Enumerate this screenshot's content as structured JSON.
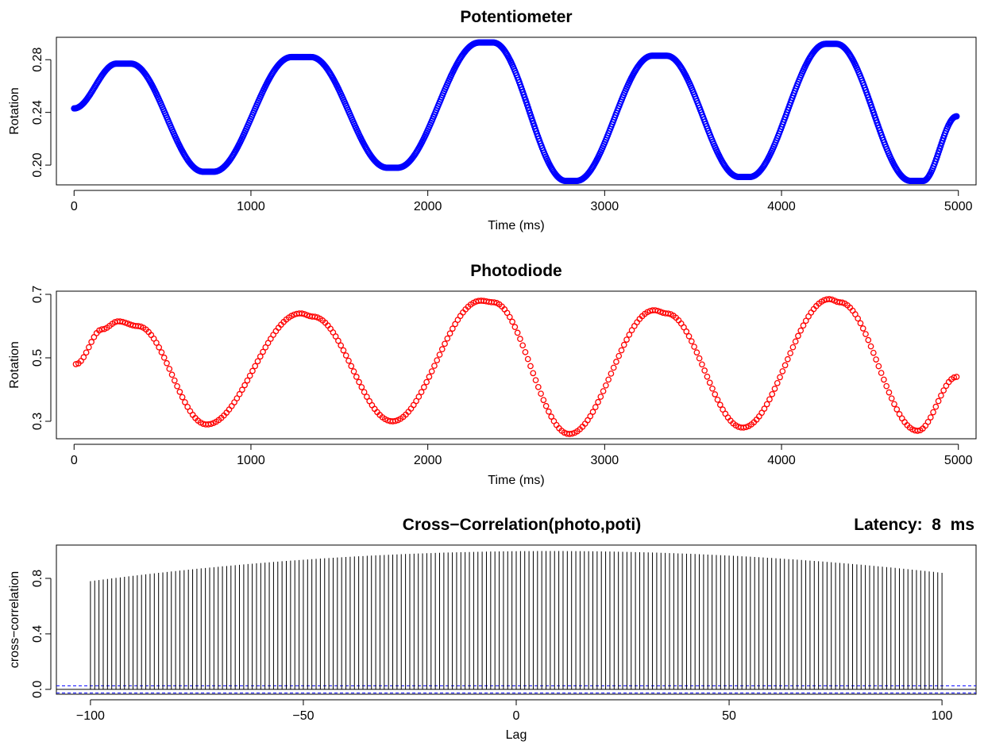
{
  "chart_data": [
    {
      "type": "scatter",
      "title": "Potentiometer",
      "xlabel": "Time (ms)",
      "ylabel": "Rotation",
      "xlim": [
        -100,
        5100
      ],
      "ylim": [
        0.185,
        0.297
      ],
      "xticks": [
        0,
        1000,
        2000,
        3000,
        4000,
        5000
      ],
      "yticks": [
        0.2,
        0.24,
        0.28
      ],
      "ytick_labels": [
        "0.20",
        "0.24",
        "0.28"
      ],
      "color": "#0000ff",
      "series": [
        {
          "keypoints": [
            [
              0,
              0.243
            ],
            [
              240,
              0.277
            ],
            [
              320,
              0.277
            ],
            [
              730,
              0.195
            ],
            [
              790,
              0.195
            ],
            [
              1230,
              0.282
            ],
            [
              1340,
              0.282
            ],
            [
              1770,
              0.198
            ],
            [
              1830,
              0.198
            ],
            [
              2290,
              0.293
            ],
            [
              2370,
              0.293
            ],
            [
              2780,
              0.188
            ],
            [
              2840,
              0.188
            ],
            [
              3270,
              0.283
            ],
            [
              3350,
              0.283
            ],
            [
              3760,
              0.191
            ],
            [
              3820,
              0.191
            ],
            [
              4250,
              0.292
            ],
            [
              4310,
              0.292
            ],
            [
              4730,
              0.188
            ],
            [
              4800,
              0.188
            ],
            [
              4990,
              0.237
            ]
          ],
          "count": 1000
        }
      ]
    },
    {
      "type": "scatter",
      "title": "Photodiode",
      "xlabel": "Time (ms)",
      "ylabel": "Rotation",
      "xlim": [
        -100,
        5100
      ],
      "ylim": [
        0.245,
        0.71
      ],
      "xticks": [
        0,
        1000,
        2000,
        3000,
        4000,
        5000
      ],
      "yticks": [
        0.3,
        0.5,
        0.7
      ],
      "ytick_labels": [
        "0.3",
        "0.5",
        "0.7"
      ],
      "color": "#ff0000",
      "series": [
        {
          "keypoints": [
            [
              10,
              0.48
            ],
            [
              160,
              0.59
            ],
            [
              250,
              0.615
            ],
            [
              360,
              0.6
            ],
            [
              750,
              0.29
            ],
            [
              1280,
              0.64
            ],
            [
              1350,
              0.63
            ],
            [
              1800,
              0.3
            ],
            [
              2300,
              0.68
            ],
            [
              2370,
              0.675
            ],
            [
              2800,
              0.26
            ],
            [
              3280,
              0.65
            ],
            [
              3350,
              0.64
            ],
            [
              3780,
              0.28
            ],
            [
              4270,
              0.685
            ],
            [
              4330,
              0.675
            ],
            [
              4770,
              0.27
            ],
            [
              4990,
              0.44
            ]
          ],
          "count": 340
        }
      ]
    },
    {
      "type": "bar",
      "title": "Cross−Correlation(photo,poti)",
      "xlabel": "Lag",
      "ylabel": "cross−correlation",
      "xlim": [
        -108,
        108
      ],
      "ylim": [
        -0.035,
        1.04
      ],
      "xticks": [
        -100,
        -50,
        0,
        50,
        100
      ],
      "xtick_labels": [
        "−100",
        "−50",
        "0",
        "50",
        "100"
      ],
      "yticks": [
        0.0,
        0.4,
        0.8
      ],
      "ytick_labels": [
        "0.0",
        "0.4",
        "0.8"
      ],
      "lag_range": [
        -100,
        100
      ],
      "peak_lag": 8,
      "peak_value": 0.997,
      "values_at_ends": [
        0.78,
        0.84
      ],
      "confidence_limits": [
        0.026,
        -0.026
      ],
      "zero_line": 0
    }
  ],
  "annotation": {
    "latency_text": "Latency:  8  ms"
  }
}
